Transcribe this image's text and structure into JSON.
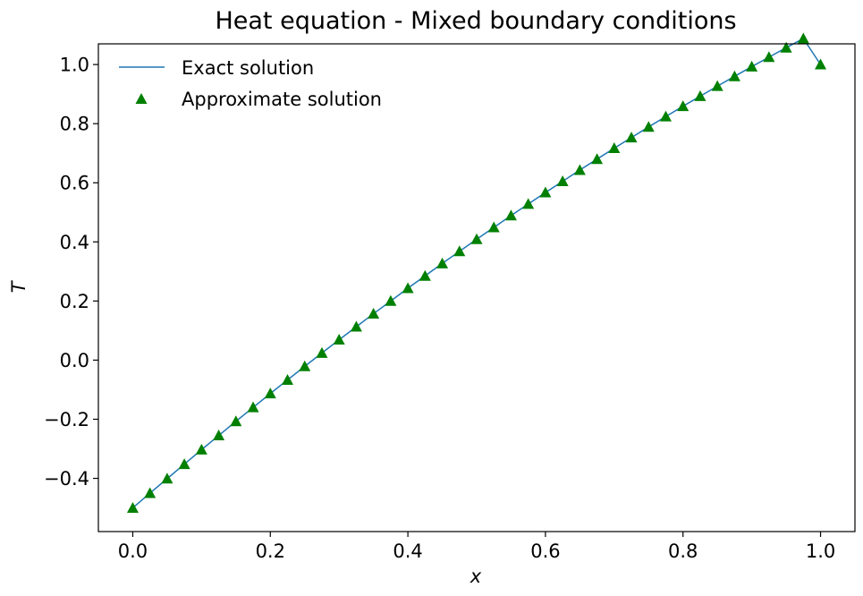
{
  "chart_data": {
    "type": "line",
    "title": "Heat equation - Mixed boundary conditions",
    "xlabel": "x",
    "ylabel": "T",
    "xlim": [
      -0.05,
      1.05
    ],
    "ylim": [
      -0.58,
      1.07
    ],
    "x_ticks": [
      0.0,
      0.2,
      0.4,
      0.6,
      0.8,
      1.0
    ],
    "x_tick_labels": [
      "0.0",
      "0.2",
      "0.4",
      "0.6",
      "0.8",
      "1.0"
    ],
    "y_ticks": [
      -0.4,
      -0.2,
      0.0,
      0.2,
      0.4,
      0.6,
      0.8,
      1.0
    ],
    "y_tick_labels": [
      "−0.4",
      "−0.2",
      "0.0",
      "0.2",
      "0.4",
      "0.6",
      "0.8",
      "1.0"
    ],
    "grid": false,
    "legend_position": "top-left",
    "series": [
      {
        "name": "Exact solution",
        "style": "line",
        "color": "#1f77b4",
        "x": [
          0.0,
          0.025,
          0.05,
          0.075,
          0.1,
          0.125,
          0.15,
          0.175,
          0.2,
          0.225,
          0.25,
          0.275,
          0.3,
          0.325,
          0.35,
          0.375,
          0.4,
          0.425,
          0.45,
          0.475,
          0.5,
          0.525,
          0.55,
          0.575,
          0.6,
          0.625,
          0.65,
          0.675,
          0.7,
          0.725,
          0.75,
          0.775,
          0.8,
          0.825,
          0.85,
          0.875,
          0.9,
          0.925,
          0.95,
          0.975,
          1.0
        ],
        "y": [
          -0.5,
          -0.45,
          -0.401,
          -0.352,
          -0.303,
          -0.255,
          -0.207,
          -0.16,
          -0.113,
          -0.067,
          -0.021,
          0.024,
          0.069,
          0.113,
          0.157,
          0.2,
          0.243,
          0.285,
          0.327,
          0.368,
          0.409,
          0.449,
          0.489,
          0.528,
          0.567,
          0.605,
          0.643,
          0.68,
          0.717,
          0.753,
          0.789,
          0.824,
          0.859,
          0.893,
          0.927,
          0.96,
          0.993,
          1.025,
          1.057,
          1.088,
          1.0
        ]
      },
      {
        "name": "Approximate solution",
        "style": "markers",
        "marker": "triangle-up",
        "color": "#008000",
        "x": [
          0.0,
          0.025,
          0.05,
          0.075,
          0.1,
          0.125,
          0.15,
          0.175,
          0.2,
          0.225,
          0.25,
          0.275,
          0.3,
          0.325,
          0.35,
          0.375,
          0.4,
          0.425,
          0.45,
          0.475,
          0.5,
          0.525,
          0.55,
          0.575,
          0.6,
          0.625,
          0.65,
          0.675,
          0.7,
          0.725,
          0.75,
          0.775,
          0.8,
          0.825,
          0.85,
          0.875,
          0.9,
          0.925,
          0.95,
          0.975,
          1.0
        ],
        "y": [
          -0.5,
          -0.45,
          -0.401,
          -0.352,
          -0.303,
          -0.255,
          -0.207,
          -0.16,
          -0.113,
          -0.067,
          -0.021,
          0.024,
          0.069,
          0.113,
          0.157,
          0.2,
          0.243,
          0.285,
          0.327,
          0.368,
          0.409,
          0.449,
          0.489,
          0.528,
          0.567,
          0.605,
          0.643,
          0.68,
          0.717,
          0.753,
          0.789,
          0.824,
          0.859,
          0.893,
          0.927,
          0.96,
          0.993,
          1.025,
          1.057,
          1.088,
          1.0
        ]
      }
    ]
  }
}
